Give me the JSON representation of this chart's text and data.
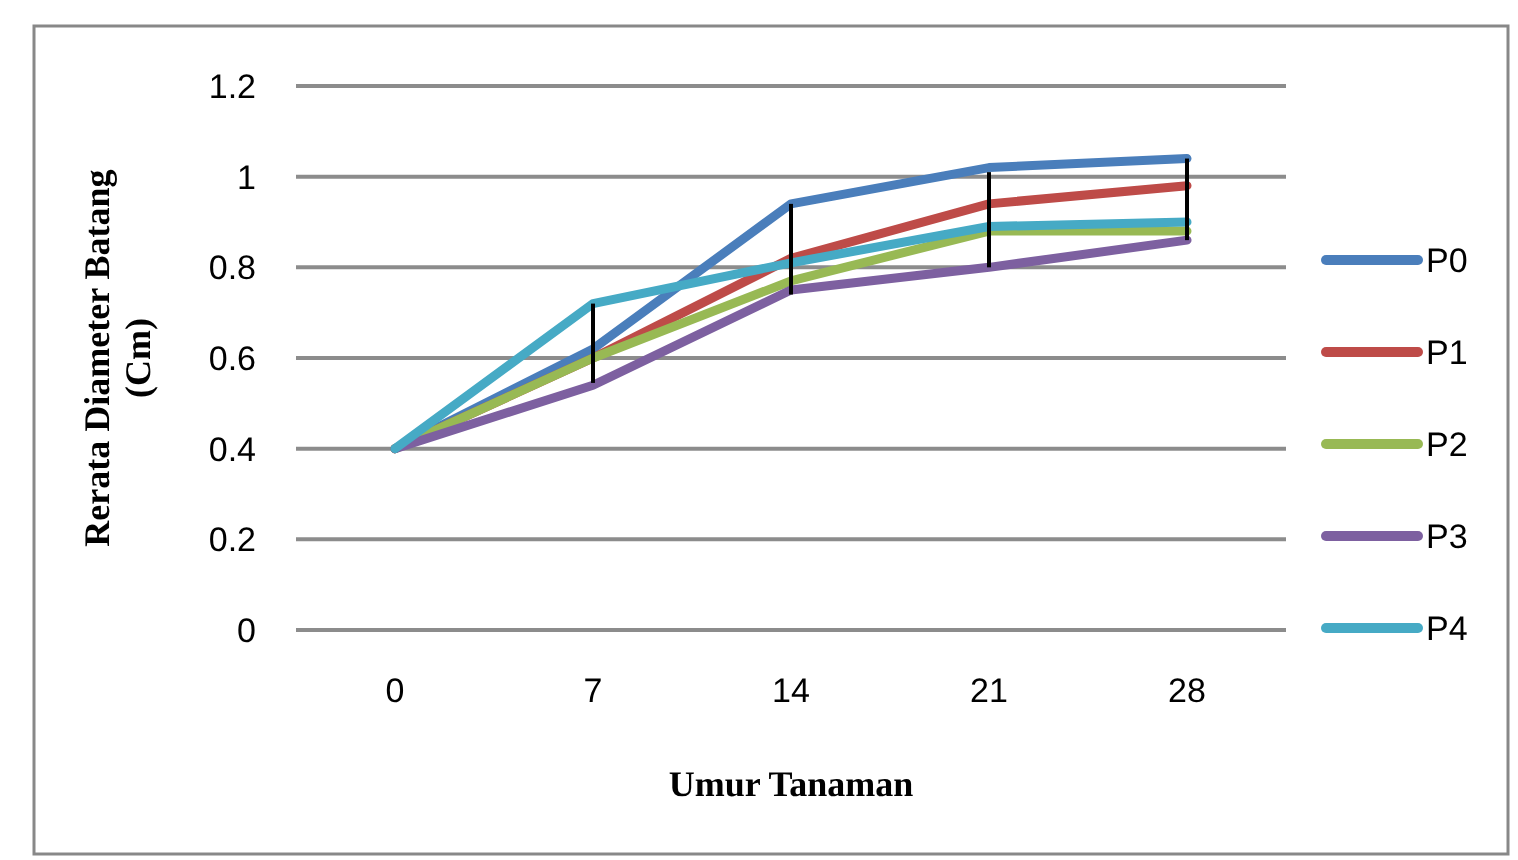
{
  "chart_data": {
    "type": "line",
    "xlabel": "Umur Tanaman",
    "ylabel": "Rerata Diameter Batang (Cm)",
    "categories": [
      "0",
      "7",
      "14",
      "21",
      "28"
    ],
    "ylim": [
      0,
      1.2
    ],
    "yticks": [
      0,
      0.2,
      0.4,
      0.6,
      0.8,
      1,
      1.2
    ],
    "grid": "y",
    "legend": "right",
    "marker": "none",
    "series": [
      {
        "name": "P0",
        "color": "#4a7ebb",
        "values": [
          0.4,
          0.62,
          0.94,
          1.02,
          1.04
        ]
      },
      {
        "name": "P1",
        "color": "#be4b48",
        "values": [
          0.4,
          0.6,
          0.82,
          0.94,
          0.98
        ],
        "errors": [
          null,
          [
            0.545,
            0.72
          ],
          [
            0.74,
            0.94
          ],
          [
            0.8,
            1.01
          ],
          [
            0.86,
            1.04
          ]
        ]
      },
      {
        "name": "P2",
        "color": "#98b954",
        "values": [
          0.4,
          0.6,
          0.77,
          0.88,
          0.88
        ]
      },
      {
        "name": "P3",
        "color": "#7d60a0",
        "values": [
          0.4,
          0.54,
          0.75,
          0.8,
          0.86
        ]
      },
      {
        "name": "P4",
        "color": "#46aac5",
        "values": [
          0.4,
          0.72,
          0.81,
          0.89,
          0.9
        ]
      }
    ]
  }
}
